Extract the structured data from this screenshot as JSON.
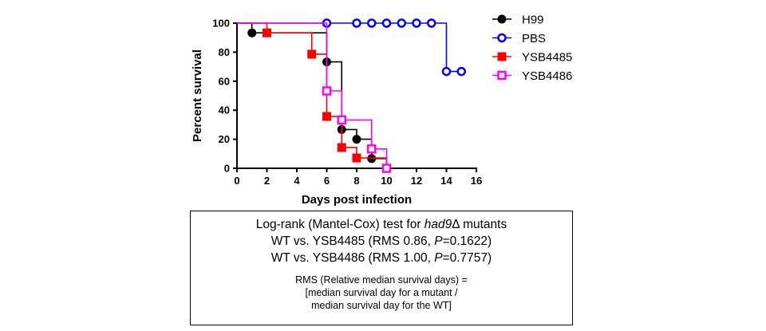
{
  "chart_data": {
    "type": "line",
    "subtype": "step (Kaplan-Meier survival)",
    "xlabel": "Days post infection",
    "ylabel": "Percent survival",
    "xlim": [
      0,
      16
    ],
    "ylim": [
      0,
      100
    ],
    "x_ticks": [
      "0",
      "2",
      "4",
      "6",
      "8",
      "10",
      "12",
      "14",
      "16"
    ],
    "y_ticks": [
      "0",
      "20",
      "40",
      "60",
      "80",
      "100"
    ],
    "legend_position": "right",
    "series": [
      {
        "name": "H99",
        "color": "#000000",
        "marker": "filled-circle",
        "steps": [
          [
            0,
            100
          ],
          [
            1,
            93.3
          ],
          [
            6,
            73.3
          ],
          [
            7,
            26.7
          ],
          [
            8,
            20
          ],
          [
            9,
            6.7
          ],
          [
            10,
            0
          ]
        ],
        "markers": [
          [
            1,
            93.3
          ],
          [
            6,
            73.3
          ],
          [
            7,
            26.7
          ],
          [
            8,
            20
          ],
          [
            9,
            6.7
          ],
          [
            10,
            0
          ]
        ]
      },
      {
        "name": "PBS",
        "color": "#0000ff",
        "marker": "open-circle",
        "steps": [
          [
            0,
            100
          ],
          [
            14,
            66.7
          ],
          [
            15,
            66.7
          ]
        ],
        "markers": [
          [
            6,
            100
          ],
          [
            8,
            100
          ],
          [
            9,
            100
          ],
          [
            10,
            100
          ],
          [
            11,
            100
          ],
          [
            12,
            100
          ],
          [
            13,
            100
          ],
          [
            14,
            66.7
          ],
          [
            15,
            66.7
          ]
        ]
      },
      {
        "name": "YSB4485",
        "color": "#ff0000",
        "marker": "filled-square",
        "steps": [
          [
            0,
            100
          ],
          [
            2,
            93.3
          ],
          [
            5,
            78.6
          ],
          [
            6,
            35.7
          ],
          [
            7,
            14.3
          ],
          [
            8,
            7.1
          ],
          [
            10,
            0
          ]
        ],
        "markers": [
          [
            2,
            93.3
          ],
          [
            5,
            78.6
          ],
          [
            6,
            35.7
          ],
          [
            7,
            14.3
          ],
          [
            8,
            7.1
          ],
          [
            10,
            0
          ]
        ]
      },
      {
        "name": "YSB4486",
        "color": "#ff00ff",
        "marker": "open-square",
        "steps": [
          [
            0,
            100
          ],
          [
            6,
            53.3
          ],
          [
            7,
            33.3
          ],
          [
            9,
            13.3
          ],
          [
            10,
            0
          ]
        ],
        "markers": [
          [
            6,
            53.3
          ],
          [
            7,
            33.3
          ],
          [
            9,
            13.3
          ],
          [
            10,
            0
          ]
        ]
      }
    ]
  },
  "note": {
    "line1_prefix": "Log-rank (Mantel-Cox) test for ",
    "line1_gene": "had9",
    "line1_suffix": "Δ mutants",
    "line2_prefix": "WT vs. YSB4485 (RMS 0.86, ",
    "line2_p": "P",
    "line2_suffix": "=0.1622)",
    "line3_prefix": "WT vs. YSB4486 (RMS 1.00, ",
    "line3_p": "P",
    "line3_suffix": "=0.7757)",
    "rms_line1": "RMS (Relative median survival days) =",
    "rms_line2": "[median survival day for a mutant  /",
    "rms_line3": "median survival day for the WT]"
  }
}
